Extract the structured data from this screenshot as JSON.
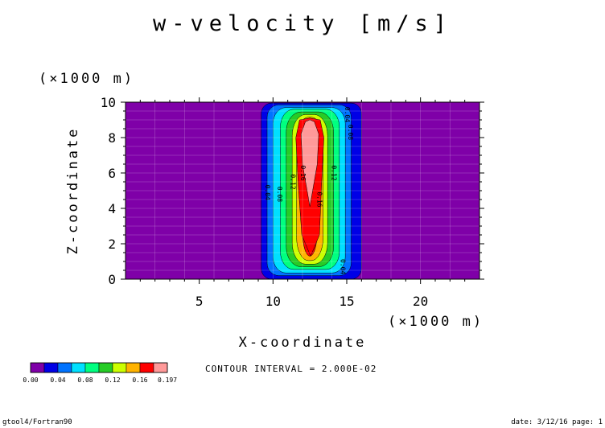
{
  "chart_data": {
    "type": "heatmap",
    "title": "w-velocity [m/s]",
    "xlabel": "X-coordinate",
    "ylabel": "Z-coordinate",
    "x_unit": "(×1000 m)",
    "y_unit": "(×1000 m)",
    "xlim": [
      0,
      24
    ],
    "ylim": [
      0,
      10
    ],
    "x_ticks": [
      5,
      10,
      15,
      20
    ],
    "y_ticks": [
      0,
      2,
      4,
      6,
      8,
      10
    ],
    "contour_levels": [
      0.0,
      0.02,
      0.04,
      0.06,
      0.08,
      0.1,
      0.12,
      0.14,
      0.16,
      0.18
    ],
    "level_max": 0.197,
    "level_colors": [
      "#7f00a8",
      "#0000e6",
      "#0073ff",
      "#00e0ff",
      "#00ff80",
      "#26cc26",
      "#ccff00",
      "#ffb300",
      "#ff0000",
      "#ff9999"
    ],
    "contour_labels": [
      {
        "text": "0.04",
        "x": 14.9,
        "z": 9.3
      },
      {
        "text": "0.08",
        "x": 15.1,
        "z": 8.3
      },
      {
        "text": "0.12",
        "x": 14.0,
        "z": 6.0
      },
      {
        "text": "0.16",
        "x": 13.0,
        "z": 4.5
      },
      {
        "text": "0.16",
        "x": 11.9,
        "z": 6.0
      },
      {
        "text": "0.12",
        "x": 11.2,
        "z": 5.5
      },
      {
        "text": "0.08",
        "x": 10.3,
        "z": 4.8
      },
      {
        "text": "0.04",
        "x": 9.5,
        "z": 4.9
      },
      {
        "text": "0.04",
        "x": 14.6,
        "z": 0.7
      }
    ],
    "colorbar_labels": [
      "0.00",
      "0.04",
      "0.08",
      "0.12",
      "0.16",
      "0.197"
    ]
  },
  "contour_interval": "CONTOUR INTERVAL = 2.000E-02",
  "footer_left": "gtool4/Fortran90",
  "footer_right": "date: 3/12/16 page: 1"
}
